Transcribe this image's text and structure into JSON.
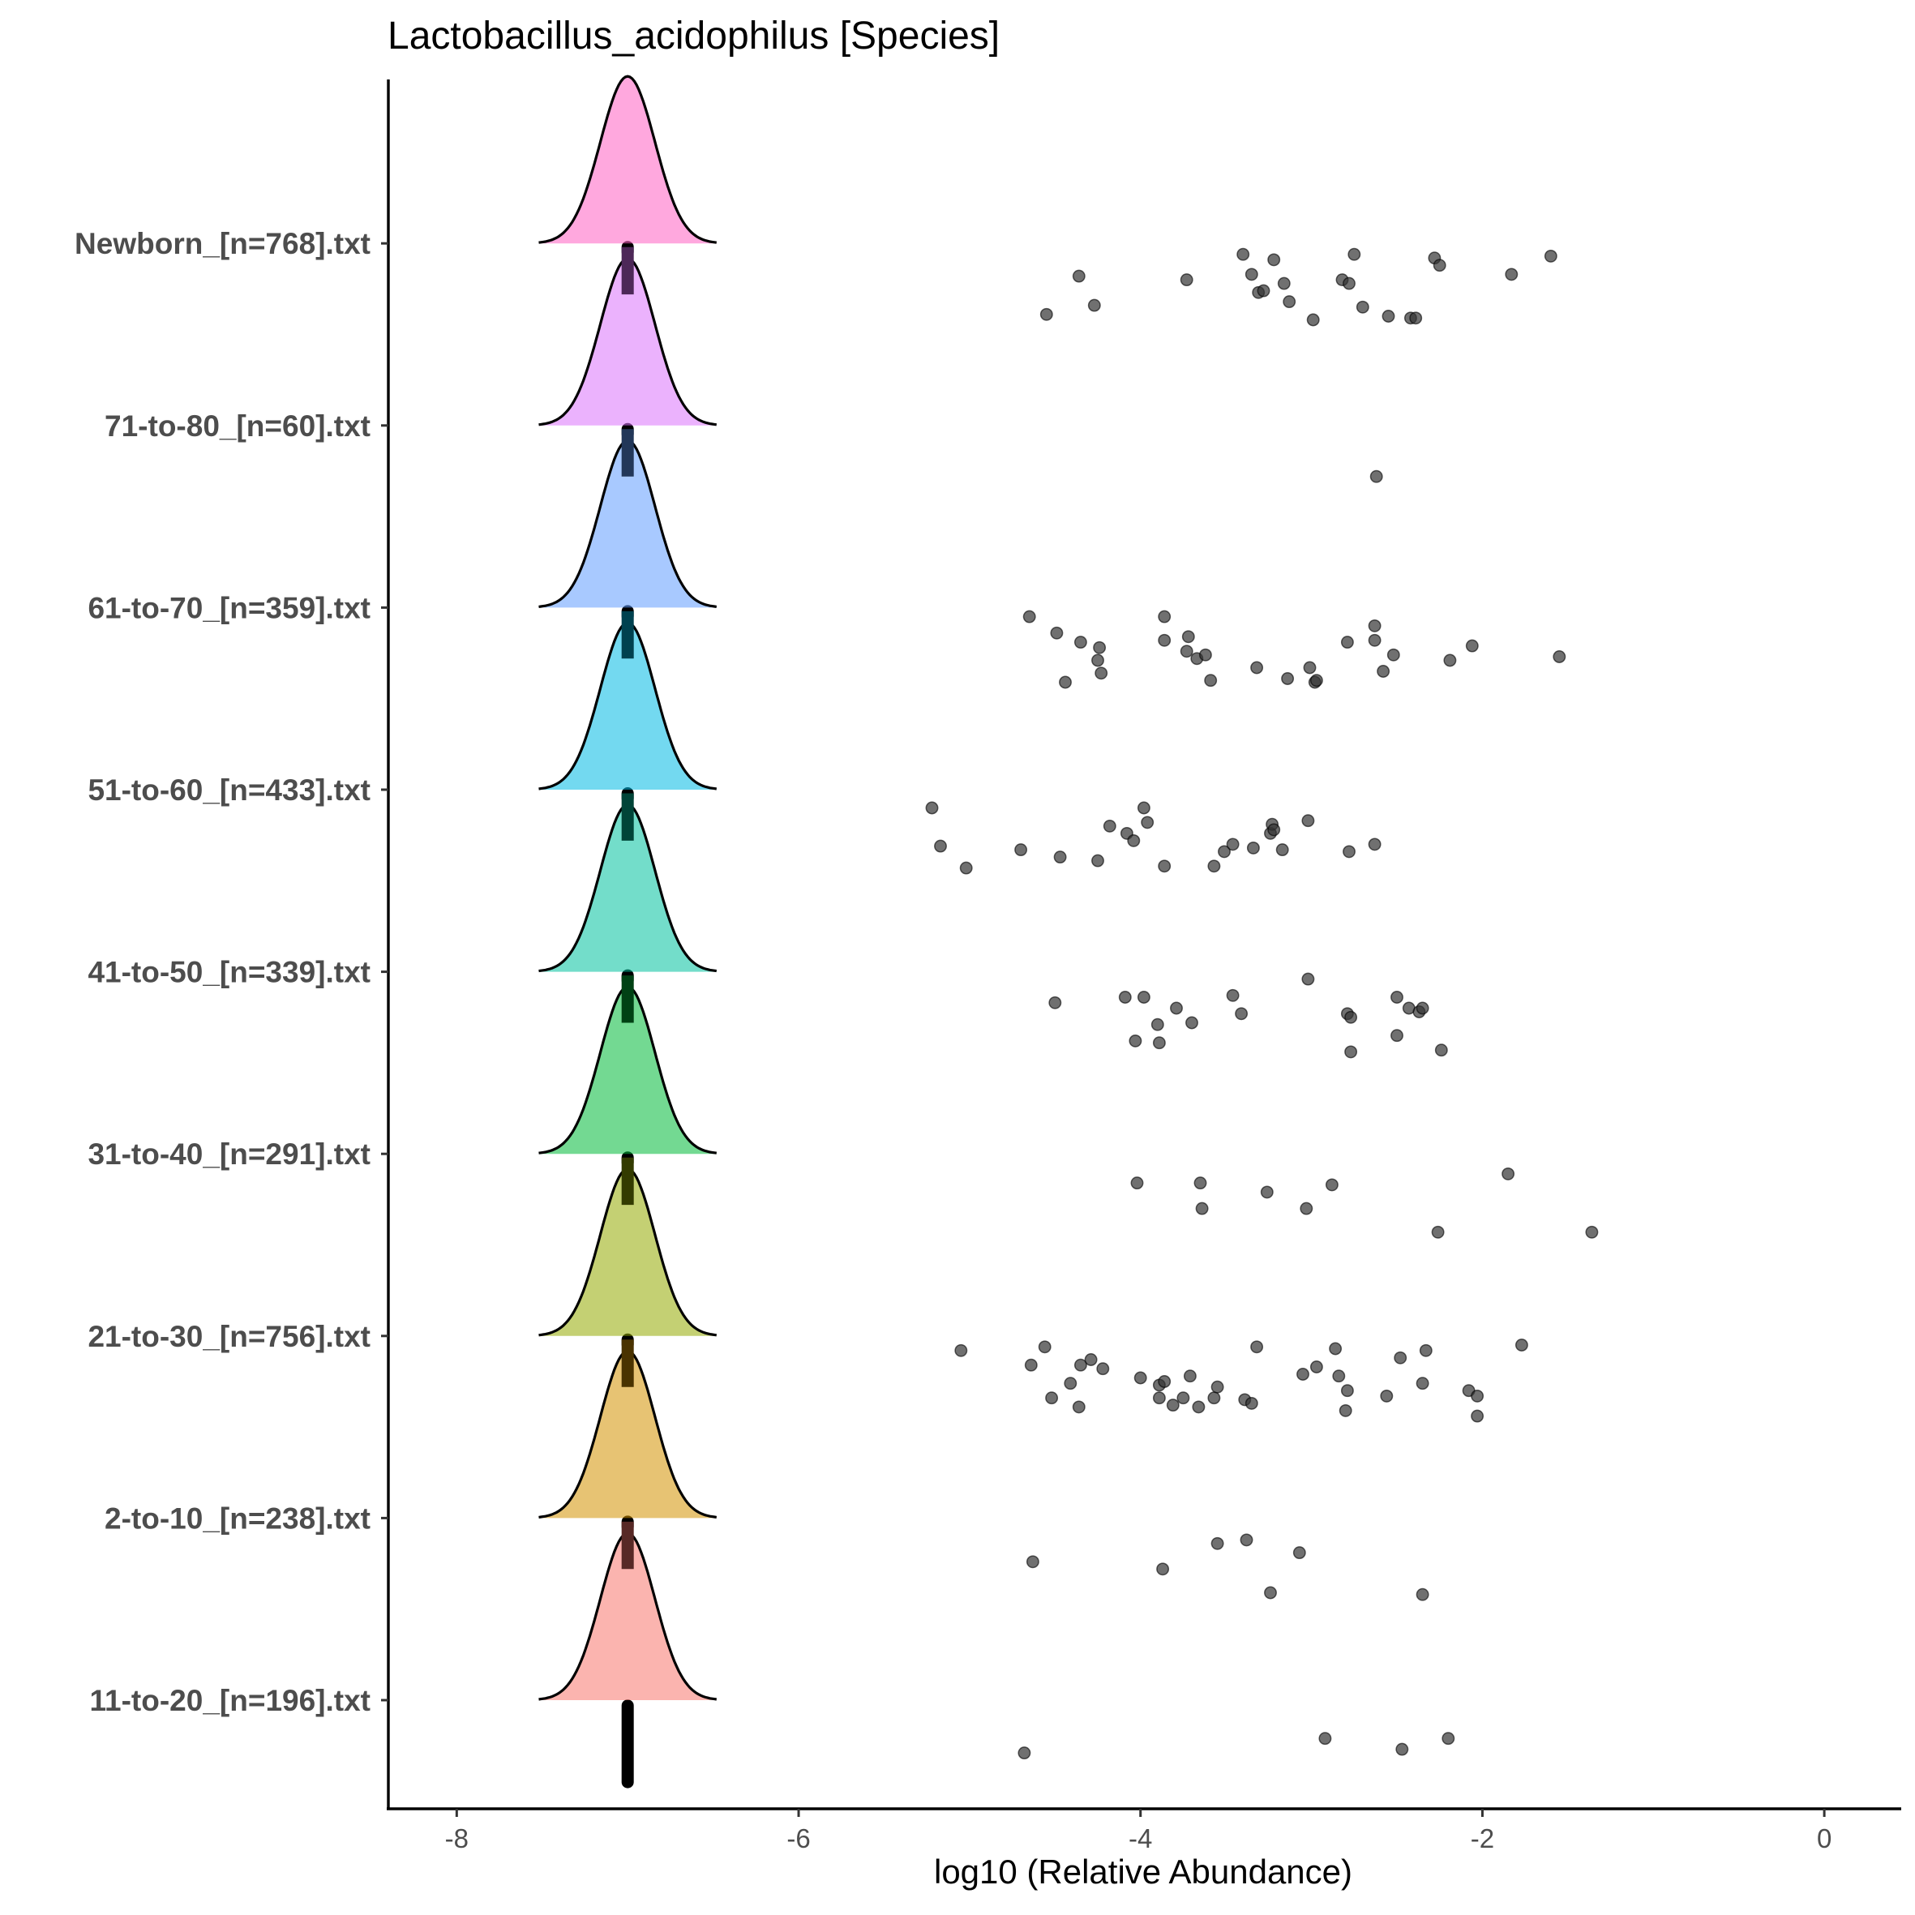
{
  "chart_data": {
    "type": "ridgeline",
    "title": "Lactobacillus_acidophilus [Species]",
    "xlabel": "log10 (Relative Abundance)",
    "ylabel": "",
    "xlim": [
      -8.4,
      0.45
    ],
    "xticks": [
      -8,
      -6,
      -4,
      -2,
      0
    ],
    "xtick_labels": [
      "-8",
      "-6",
      "-4",
      "-2",
      "0"
    ],
    "grid": false,
    "legend": "none",
    "baseline_value": -7,
    "categories": [
      "11-to-20_[n=196].txt",
      "2-to-10_[n=238].txt",
      "21-to-30_[n=756].txt",
      "31-to-40_[n=291].txt",
      "41-to-50_[n=339].txt",
      "51-to-60_[n=433].txt",
      "61-to-70_[n=359].txt",
      "71-to-80_[n=60].txt",
      "Newborn_[n=768].txt"
    ],
    "series": [
      {
        "category": "11-to-20_[n=196].txt",
        "color": "#F8766D",
        "points": [
          [
            -4.68,
            -0.29
          ],
          [
            -2.92,
            -0.21
          ],
          [
            -2.47,
            -0.27
          ],
          [
            -2.2,
            -0.21
          ]
        ]
      },
      {
        "category": "2-to-10_[n=238].txt",
        "color": "#D39200",
        "points": [
          [
            -4.63,
            -0.24
          ],
          [
            -3.87,
            -0.28
          ],
          [
            -3.55,
            -0.14
          ],
          [
            -3.38,
            -0.12
          ],
          [
            -3.07,
            -0.19
          ],
          [
            -3.24,
            -0.41
          ],
          [
            -2.35,
            -0.42
          ]
        ]
      },
      {
        "category": "21-to-30_[n=756].txt",
        "color": "#93AA00",
        "points": [
          [
            -5.05,
            -0.08
          ],
          [
            -4.56,
            -0.06
          ],
          [
            -4.64,
            -0.16
          ],
          [
            -4.35,
            -0.16
          ],
          [
            -4.29,
            -0.13
          ],
          [
            -4.22,
            -0.18
          ],
          [
            -4.41,
            -0.26
          ],
          [
            -4.52,
            -0.34
          ],
          [
            -4.36,
            -0.39
          ],
          [
            -4.0,
            -0.23
          ],
          [
            -3.89,
            -0.27
          ],
          [
            -3.86,
            -0.25
          ],
          [
            -3.71,
            -0.22
          ],
          [
            -3.75,
            -0.34
          ],
          [
            -3.81,
            -0.38
          ],
          [
            -3.89,
            -0.34
          ],
          [
            -3.66,
            -0.39
          ],
          [
            -3.57,
            -0.34
          ],
          [
            -3.55,
            -0.28
          ],
          [
            -3.39,
            -0.35
          ],
          [
            -3.35,
            -0.37
          ],
          [
            -3.32,
            -0.06
          ],
          [
            -3.05,
            -0.21
          ],
          [
            -2.97,
            -0.17
          ],
          [
            -2.86,
            -0.07
          ],
          [
            -2.84,
            -0.22
          ],
          [
            -2.79,
            -0.3
          ],
          [
            -2.8,
            -0.41
          ],
          [
            -2.56,
            -0.33
          ],
          [
            -2.48,
            -0.12
          ],
          [
            -2.33,
            -0.08
          ],
          [
            -2.35,
            -0.26
          ],
          [
            -2.08,
            -0.3
          ],
          [
            -2.03,
            -0.33
          ],
          [
            -2.03,
            -0.44
          ],
          [
            -1.77,
            -0.05
          ]
        ]
      },
      {
        "category": "31-to-40_[n=291].txt",
        "color": "#00BA38",
        "points": [
          [
            -4.02,
            -0.16
          ],
          [
            -3.65,
            -0.16
          ],
          [
            -3.64,
            -0.3
          ],
          [
            -3.26,
            -0.21
          ],
          [
            -3.03,
            -0.3
          ],
          [
            -2.88,
            -0.17
          ],
          [
            -2.26,
            -0.43
          ],
          [
            -1.85,
            -0.11
          ],
          [
            -1.36,
            -0.43
          ]
        ]
      },
      {
        "category": "41-to-50_[n=339].txt",
        "color": "#00C19F",
        "points": [
          [
            -4.5,
            -0.17
          ],
          [
            -4.09,
            -0.14
          ],
          [
            -3.98,
            -0.14
          ],
          [
            -3.79,
            -0.2
          ],
          [
            -3.7,
            -0.28
          ],
          [
            -3.9,
            -0.29
          ],
          [
            -4.03,
            -0.38
          ],
          [
            -3.89,
            -0.39
          ],
          [
            -3.46,
            -0.13
          ],
          [
            -3.41,
            -0.23
          ],
          [
            -3.02,
            -0.04
          ],
          [
            -2.79,
            -0.23
          ],
          [
            -2.77,
            -0.25
          ],
          [
            -2.77,
            -0.44
          ],
          [
            -2.5,
            -0.14
          ],
          [
            -2.43,
            -0.2
          ],
          [
            -2.37,
            -0.22
          ],
          [
            -2.35,
            -0.2
          ],
          [
            -2.5,
            -0.35
          ],
          [
            -2.24,
            -0.43
          ]
        ]
      },
      {
        "category": "51-to-60_[n=433].txt",
        "color": "#00B9E3",
        "points": [
          [
            -5.22,
            -0.1
          ],
          [
            -5.17,
            -0.31
          ],
          [
            -5.02,
            -0.43
          ],
          [
            -4.7,
            -0.33
          ],
          [
            -4.47,
            -0.37
          ],
          [
            -4.18,
            -0.2
          ],
          [
            -4.08,
            -0.24
          ],
          [
            -4.04,
            -0.28
          ],
          [
            -3.98,
            -0.1
          ],
          [
            -3.96,
            -0.18
          ],
          [
            -4.25,
            -0.39
          ],
          [
            -3.86,
            -0.42
          ],
          [
            -3.57,
            -0.42
          ],
          [
            -3.51,
            -0.34
          ],
          [
            -3.46,
            -0.3
          ],
          [
            -3.34,
            -0.32
          ],
          [
            -3.24,
            -0.24
          ],
          [
            -3.23,
            -0.19
          ],
          [
            -3.22,
            -0.22
          ],
          [
            -3.17,
            -0.33
          ],
          [
            -3.02,
            -0.17
          ],
          [
            -2.78,
            -0.34
          ],
          [
            -2.63,
            -0.3
          ]
        ]
      },
      {
        "category": "61-to-70_[n=359].txt",
        "color": "#619CFF",
        "points": [
          [
            -4.65,
            -0.05
          ],
          [
            -4.49,
            -0.14
          ],
          [
            -4.35,
            -0.19
          ],
          [
            -4.24,
            -0.22
          ],
          [
            -4.25,
            -0.29
          ],
          [
            -4.23,
            -0.36
          ],
          [
            -4.44,
            -0.41
          ],
          [
            -3.86,
            -0.05
          ],
          [
            -3.86,
            -0.18
          ],
          [
            -3.72,
            -0.16
          ],
          [
            -3.73,
            -0.24
          ],
          [
            -3.67,
            -0.28
          ],
          [
            -3.62,
            -0.26
          ],
          [
            -3.59,
            -0.4
          ],
          [
            -3.32,
            -0.33
          ],
          [
            -3.14,
            -0.39
          ],
          [
            -3.01,
            -0.33
          ],
          [
            -2.98,
            -0.41
          ],
          [
            -2.97,
            -0.4
          ],
          [
            -2.79,
            -0.19
          ],
          [
            -2.63,
            -0.1
          ],
          [
            -2.63,
            -0.18
          ],
          [
            -2.58,
            -0.35
          ],
          [
            -2.52,
            -0.26
          ],
          [
            -2.19,
            -0.29
          ],
          [
            -2.06,
            -0.21
          ],
          [
            -1.55,
            -0.27
          ]
        ]
      },
      {
        "category": "71-to-80_[n=60].txt",
        "color": "#DB72FB",
        "points": [
          [
            -2.62,
            -0.28
          ]
        ]
      },
      {
        "category": "Newborn_[n=768].txt",
        "color": "#FF61C3",
        "points": [
          [
            -4.55,
            -0.39
          ],
          [
            -4.36,
            -0.18
          ],
          [
            -4.27,
            -0.34
          ],
          [
            -3.73,
            -0.2
          ],
          [
            -3.4,
            -0.06
          ],
          [
            -3.35,
            -0.17
          ],
          [
            -3.31,
            -0.27
          ],
          [
            -3.28,
            -0.26
          ],
          [
            -3.22,
            -0.09
          ],
          [
            -3.16,
            -0.22
          ],
          [
            -3.13,
            -0.32
          ],
          [
            -2.99,
            -0.42
          ],
          [
            -2.82,
            -0.2
          ],
          [
            -2.78,
            -0.22
          ],
          [
            -2.75,
            -0.06
          ],
          [
            -2.7,
            -0.35
          ],
          [
            -2.55,
            -0.4
          ],
          [
            -2.42,
            -0.41
          ],
          [
            -2.39,
            -0.41
          ],
          [
            -2.28,
            -0.08
          ],
          [
            -2.25,
            -0.12
          ],
          [
            -1.83,
            -0.17
          ],
          [
            -1.6,
            -0.07
          ]
        ]
      }
    ]
  }
}
